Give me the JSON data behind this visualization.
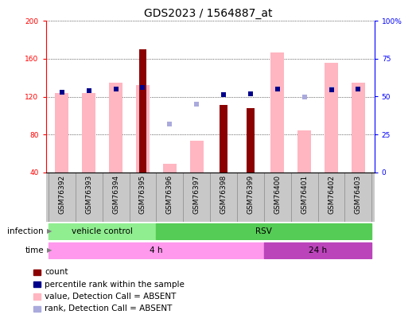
{
  "title": "GDS2023 / 1564887_at",
  "samples": [
    "GSM76392",
    "GSM76393",
    "GSM76394",
    "GSM76395",
    "GSM76396",
    "GSM76397",
    "GSM76398",
    "GSM76399",
    "GSM76400",
    "GSM76401",
    "GSM76402",
    "GSM76403"
  ],
  "ylim_left": [
    40,
    200
  ],
  "ylim_right": [
    0,
    100
  ],
  "yticks_left": [
    40,
    80,
    120,
    160,
    200
  ],
  "yticks_right": [
    0,
    25,
    50,
    75,
    100
  ],
  "pink_bar_values": [
    124,
    124,
    135,
    132,
    49,
    73,
    null,
    null,
    167,
    84,
    156,
    135
  ],
  "count_bar_values": [
    null,
    null,
    null,
    170,
    null,
    null,
    111,
    108,
    null,
    null,
    null,
    null
  ],
  "blue_marker_values": [
    125,
    126,
    128,
    130,
    null,
    null,
    122,
    123,
    128,
    null,
    127,
    128
  ],
  "light_blue_marker_values": [
    null,
    null,
    null,
    null,
    91,
    112,
    null,
    null,
    null,
    120,
    128,
    null
  ],
  "dark_red": "#8B0000",
  "pink": "#FFB6C1",
  "dark_blue": "#00008B",
  "light_blue": "#AAAADD",
  "light_green_vc": "#90EE90",
  "light_green_rsv": "#55CC55",
  "pink_time1": "#FF99EE",
  "pink_time2": "#BB44BB",
  "gray_bg": "#C8C8C8",
  "bar_width": 0.5,
  "dot_size": 25,
  "title_fontsize": 10,
  "tick_fontsize": 6.5,
  "label_fontsize": 7.5,
  "legend_fontsize": 7.5
}
